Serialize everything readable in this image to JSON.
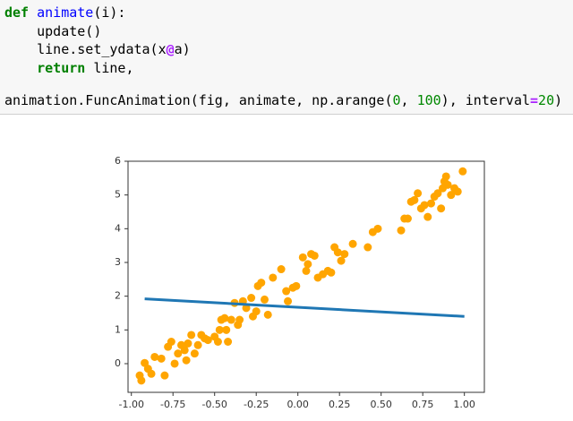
{
  "code": {
    "lines": [
      [
        {
          "text": "def",
          "color": "#008000",
          "bold": true
        },
        {
          "text": " animate",
          "color": "#0000ff"
        },
        {
          "text": "(i):"
        }
      ],
      [
        {
          "text": "    update()"
        }
      ],
      [
        {
          "text": "    line.set_ydata(x"
        },
        {
          "text": "@",
          "color": "#aa22ff",
          "bold": true
        },
        {
          "text": "a)"
        }
      ],
      [
        {
          "text": "    return",
          "color": "#008000",
          "bold": true
        },
        {
          "text": " line,"
        }
      ],
      [
        {
          "text": "animation.FuncAnimation(fig, animate, np.arange("
        },
        {
          "text": "0",
          "color": "#008800"
        },
        {
          "text": ", "
        },
        {
          "text": "100",
          "color": "#008800"
        },
        {
          "text": "), interval"
        },
        {
          "text": "=",
          "color": "#aa22ff",
          "bold": true
        },
        {
          "text": "20",
          "color": "#008800"
        },
        {
          "text": ")"
        }
      ]
    ]
  },
  "chart_data": {
    "type": "scatter",
    "xlim": [
      -1.02,
      1.12
    ],
    "ylim": [
      -0.85,
      6.0
    ],
    "xticks": [
      {
        "value": -1.0,
        "label": "-1.00"
      },
      {
        "value": -0.75,
        "label": "-0.75"
      },
      {
        "value": -0.5,
        "label": "-0.50"
      },
      {
        "value": -0.25,
        "label": "-0.25"
      },
      {
        "value": 0,
        "label": "0.00"
      },
      {
        "value": 0.25,
        "label": "0.25"
      },
      {
        "value": 0.5,
        "label": "0.50"
      },
      {
        "value": 0.75,
        "label": "0.75"
      },
      {
        "value": 1.0,
        "label": "1.00"
      }
    ],
    "yticks": [
      0,
      1,
      2,
      3,
      4,
      5,
      6
    ],
    "scatter": {
      "color": "#ffa500",
      "x": [
        -0.95,
        -0.94,
        -0.92,
        -0.9,
        -0.88,
        -0.86,
        -0.82,
        -0.8,
        -0.78,
        -0.76,
        -0.74,
        -0.72,
        -0.7,
        -0.68,
        -0.67,
        -0.66,
        -0.64,
        -0.62,
        -0.6,
        -0.58,
        -0.56,
        -0.54,
        -0.5,
        -0.48,
        -0.47,
        -0.46,
        -0.44,
        -0.43,
        -0.42,
        -0.4,
        -0.38,
        -0.36,
        -0.35,
        -0.33,
        -0.31,
        -0.28,
        -0.27,
        -0.25,
        -0.24,
        -0.22,
        -0.2,
        -0.18,
        -0.15,
        -0.1,
        -0.07,
        -0.06,
        -0.03,
        -0.01,
        0.03,
        0.05,
        0.06,
        0.08,
        0.1,
        0.12,
        0.15,
        0.18,
        0.2,
        0.22,
        0.24,
        0.26,
        0.28,
        0.33,
        0.42,
        0.45,
        0.48,
        0.62,
        0.64,
        0.66,
        0.68,
        0.7,
        0.72,
        0.74,
        0.76,
        0.78,
        0.8,
        0.82,
        0.84,
        0.86,
        0.87,
        0.88,
        0.89,
        0.9,
        0.92,
        0.94,
        0.96,
        0.99
      ],
      "y": [
        -0.35,
        -0.5,
        0.02,
        -0.15,
        -0.3,
        0.2,
        0.15,
        -0.35,
        0.5,
        0.65,
        0.0,
        0.3,
        0.55,
        0.4,
        0.1,
        0.6,
        0.85,
        0.3,
        0.55,
        0.85,
        0.75,
        0.7,
        0.8,
        0.65,
        1.0,
        1.3,
        1.35,
        1.0,
        0.65,
        1.3,
        1.8,
        1.15,
        1.3,
        1.85,
        1.65,
        1.95,
        1.4,
        1.55,
        2.3,
        2.4,
        1.9,
        1.45,
        2.55,
        2.8,
        2.15,
        1.85,
        2.25,
        2.3,
        3.15,
        2.75,
        2.95,
        3.25,
        3.2,
        2.55,
        2.65,
        2.75,
        2.7,
        3.45,
        3.3,
        3.05,
        3.25,
        3.55,
        3.45,
        3.9,
        4.0,
        3.95,
        4.3,
        4.3,
        4.8,
        4.85,
        5.05,
        4.6,
        4.7,
        4.35,
        4.75,
        4.95,
        5.05,
        4.6,
        5.2,
        5.4,
        5.55,
        5.3,
        5.0,
        5.2,
        5.1,
        5.7
      ]
    },
    "line": {
      "color": "#1f77b4",
      "x": [
        -0.92,
        1.0
      ],
      "y": [
        1.92,
        1.4
      ]
    }
  }
}
